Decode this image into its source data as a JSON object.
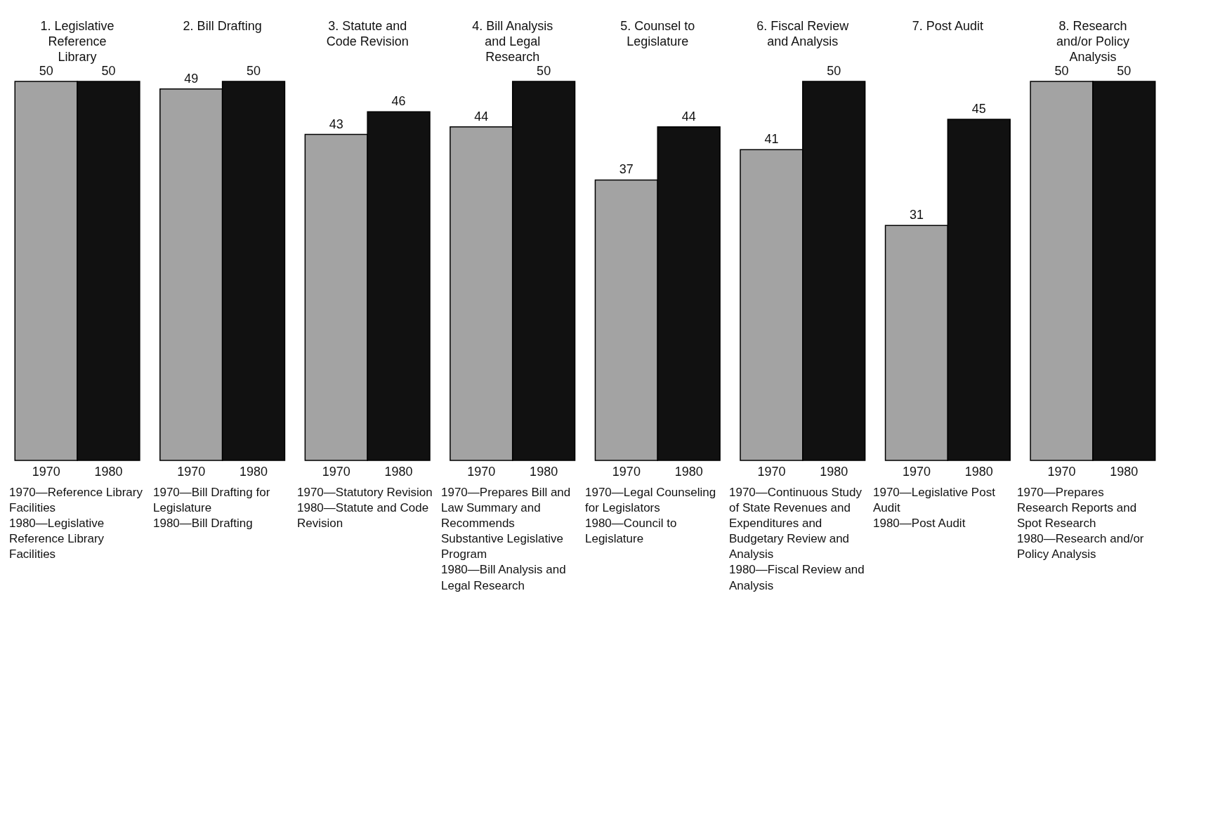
{
  "chart_data": {
    "type": "bar",
    "categories": [
      "1. Legislative Reference Library",
      "2. Bill Drafting",
      "3. Statute and Code Revision",
      "4. Bill Analysis and Legal Research",
      "5. Counsel to Legislature",
      "6. Fiscal Review and Analysis",
      "7. Post Audit",
      "8. Research and/or Policy Analysis"
    ],
    "series": [
      {
        "name": "1970",
        "color": "#a3a3a3",
        "values": [
          50,
          49,
          43,
          44,
          37,
          41,
          31,
          50
        ]
      },
      {
        "name": "1980",
        "color": "#111111",
        "values": [
          50,
          50,
          46,
          50,
          44,
          50,
          45,
          50
        ]
      }
    ],
    "data_labels": true,
    "annotations": [
      "1970—Reference Library Facilities\n1980—Legislative Reference Library Facilities",
      "1970—Bill Drafting for Legislature\n1980—Bill Drafting",
      "1970—Statutory Revision\n1980—Statute and Code Revision",
      "1970—Prepares Bill and Law Summary and Recommends Substantive Legislative Program\n1980—Bill Analysis and Legal Research",
      "1970—Legal Counseling for Legislators\n1980—Council to Legislature",
      "1970—Continuous Study of State Revenues and Expenditures and Budgetary Review and Analysis\n1980—Fiscal Review and Analysis",
      "1970—Legislative Post Audit\n1980—Post Audit",
      "1970—Prepares Research Reports and Spot Research\n1980—Research and/or Policy Analysis"
    ]
  }
}
